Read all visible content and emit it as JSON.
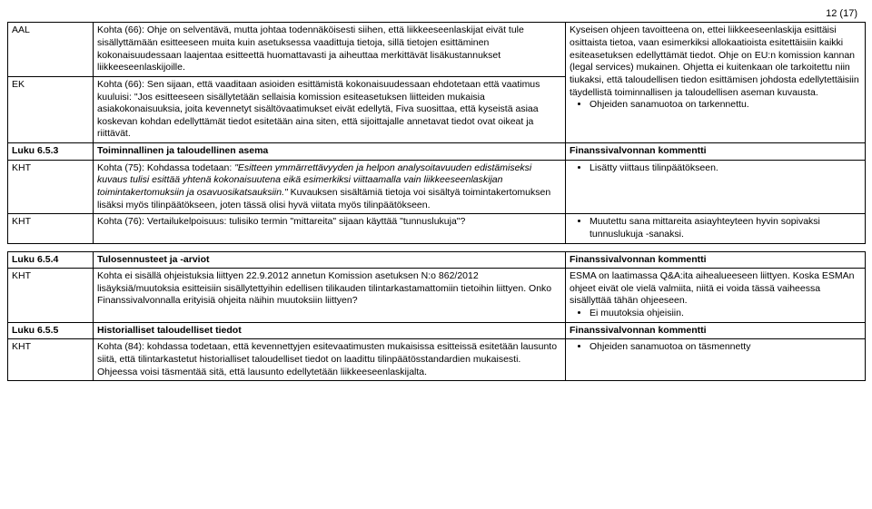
{
  "pageNumber": "12 (17)",
  "table1": {
    "rows": [
      {
        "c1": "AAL",
        "c2": "Kohta (66): Ohje on selventävä, mutta johtaa todennäköisesti siihen, että liikkeeseenlaskijat eivät tule sisällyttämään esitteeseen muita kuin asetuksessa vaadittuja tietoja, sillä tietojen esittäminen kokonaisuudessaan laajentaa esitteettä huomattavasti ja aiheuttaa merkittävät lisäkustannukset liikkeeseenlaskijoille.",
        "c3_text": "Kyseisen ohjeen tavoitteena on, ettei liikkeeseenlaskija esittäisi osittaista tietoa, vaan esimerkiksi allokaatioista esitettäisiin kaikki esiteasetuksen edellyttämät tiedot. Ohje on EU:n komission kannan (legal services) mukainen. Ohjetta ei kuitenkaan ole tarkoitettu niin tiukaksi, että taloudellisen tiedon esittämisen johdosta edellytettäisiin täydellistä toiminnallisen ja taloudellisen aseman kuvausta.",
        "c3_bullets": [
          "Ohjeiden sanamuotoa on tarkennettu."
        ],
        "rowspan_c3": 2
      },
      {
        "c1": "EK",
        "c2": "Kohta (66): Sen sijaan, että vaaditaan asioiden esittämistä kokonaisuudessaan ehdotetaan että vaatimus kuuluisi: \"Jos esitteeseen sisällytetään sellaisia komission esiteasetuksen liitteiden mukaisia asiakokonaisuuksia, joita kevennetyt sisältövaatimukset eivät edellytä, Fiva suosittaa, että kyseistä asiaa koskevan kohdan edellyttämät tiedot esitetään aina siten, että sijoittajalle annetavat tiedot ovat oikeat ja riittävät."
      },
      {
        "is_header": true,
        "c1": "Luku 6.5.3",
        "c2": "Toiminnallinen ja taloudellinen asema",
        "c3": "Finanssivalvonnan kommentti"
      },
      {
        "c1": "KHT",
        "c2_html": "Kohta (75): Kohdassa todetaan: <i>\"Esitteen ymmärrettävyyden ja helpon analysoitavuuden edistämiseksi kuvaus tulisi esittää yhtenä kokonaisuutena eikä esimerkiksi viittaamalla vain liikkeeseenlaskijan toimintakertomuksiin ja osavuosikatsauksiin.\"</i> Kuvauksen sisältämiä tietoja voi sisältyä toimintakertomuksen lisäksi myös tilinpäätökseen, joten tässä olisi hyvä viitata myös tilinpäätökseen.",
        "c3_bullets": [
          "Lisätty viittaus tilinpäätökseen."
        ]
      },
      {
        "c1": "KHT",
        "c2": "Kohta (76): Vertailukelpoisuus: tulisiko termin \"mittareita\" sijaan käyttää \"tunnuslukuja\"?",
        "c3_bullets": [
          "Muutettu sana mittareita asiayhteyteen hyvin sopivaksi tunnuslukuja -sanaksi."
        ]
      }
    ]
  },
  "table2": {
    "rows": [
      {
        "is_header": true,
        "c1": "Luku 6.5.4",
        "c2": "Tulosennusteet ja -arviot",
        "c3": "Finanssivalvonnan kommentti"
      },
      {
        "c1": "KHT",
        "c2": "Kohta ei sisällä ohjeistuksia liittyen 22.9.2012 annetun Komission asetuksen N:o 862/2012 lisäyksiä/muutoksia esitteisiin sisällytettyihin edellisen tilikauden tilintarkastamattomiin tietoihin liittyen. Onko Finanssivalvonnalla erityisiä ohjeita näihin muutoksiin liittyen?",
        "c3_text": "ESMA on laatimassa Q&A:ita aihealueeseen liittyen. Koska ESMAn ohjeet eivät ole vielä valmiita, niitä ei voida tässä vaiheessa sisällyttää tähän ohjeeseen.",
        "c3_bullets": [
          "Ei muutoksia ohjeisiin."
        ]
      },
      {
        "is_header": true,
        "c1": "Luku 6.5.5",
        "c2": "Historialliset taloudelliset tiedot",
        "c3": "Finanssivalvonnan kommentti"
      },
      {
        "c1": "KHT",
        "c2": "Kohta (84): kohdassa todetaan, että kevennettyjen esitevaatimusten mukaisissa esitteissä esitetään lausunto siitä, että tilintarkastetut historialliset taloudelliset tiedot on laadittu tilinpäätösstandardien mukaisesti. Ohjeessa voisi täsmentää sitä, että lausunto edellytetään liikkeeseenlaskijalta.",
        "c3_bullets": [
          "Ohjeiden sanamuotoa on täsmennetty"
        ]
      }
    ]
  }
}
